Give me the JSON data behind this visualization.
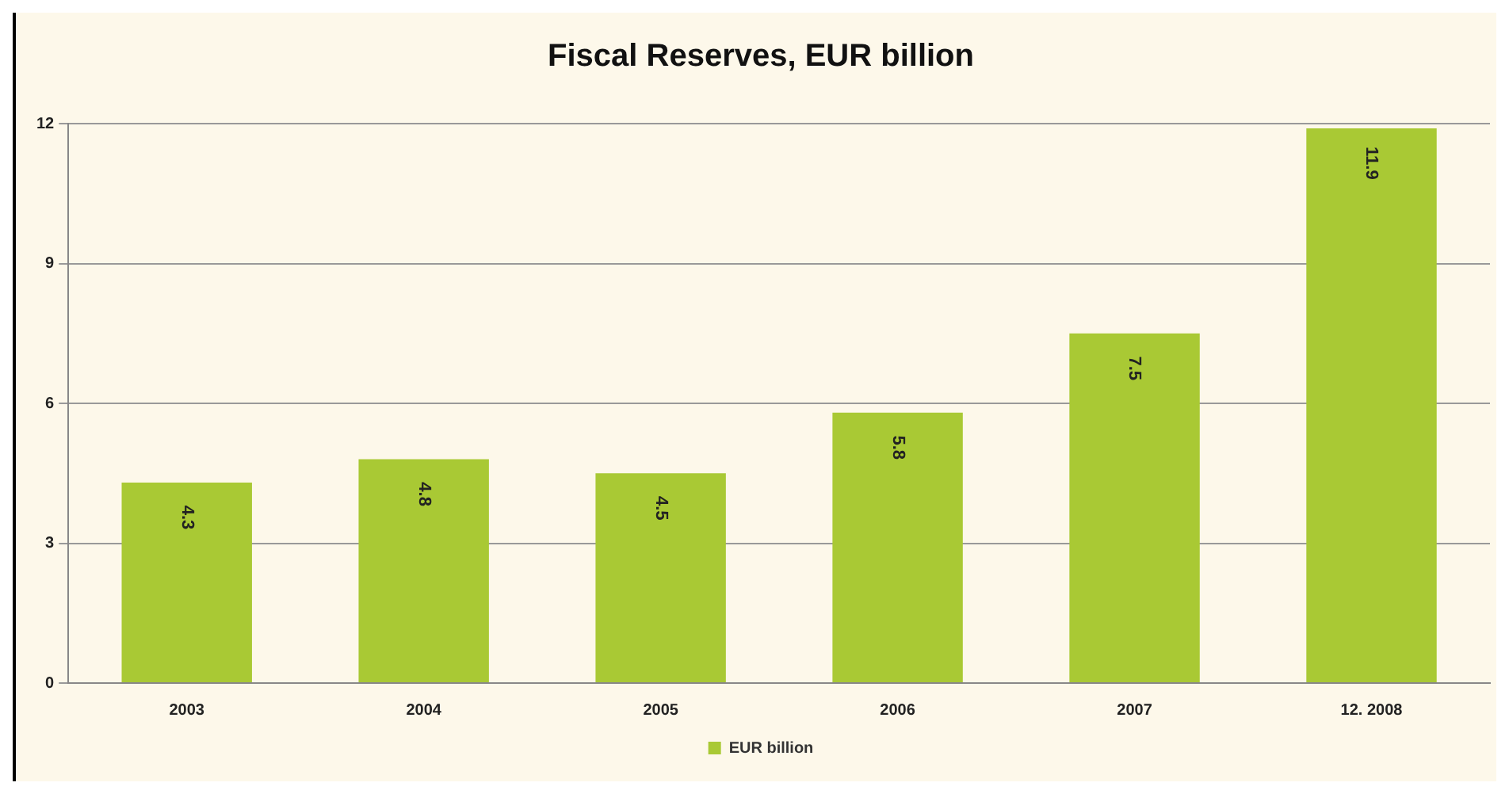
{
  "chart_data": {
    "type": "bar",
    "title": "Fiscal Reserves, EUR billion",
    "categories": [
      "2003",
      "2004",
      "2005",
      "2006",
      "2007",
      "12. 2008"
    ],
    "series": [
      {
        "name": "EUR billion",
        "color": "#a9c934",
        "values": [
          4.3,
          4.8,
          4.5,
          5.8,
          7.5,
          11.9
        ]
      }
    ],
    "ylim": [
      0,
      12
    ],
    "yticks": [
      0,
      3,
      6,
      9,
      12
    ],
    "grid": "y",
    "legend": "bottom",
    "data_labels": true
  }
}
